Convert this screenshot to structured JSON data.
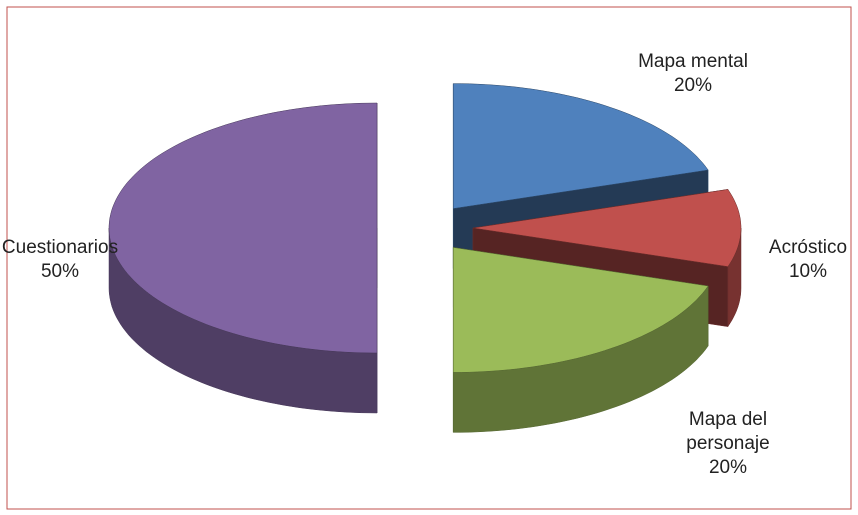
{
  "chart_data": {
    "type": "pie3d",
    "categories": [
      "Mapa mental",
      "Acróstico",
      "Mapa del personaje",
      "Cuestionarios"
    ],
    "values": [
      20,
      10,
      20,
      50
    ],
    "value_labels": [
      "20%",
      "10%",
      "20%",
      "50%"
    ],
    "colors": [
      "#4f81bd",
      "#c0504d",
      "#9bbb59",
      "#8064a2"
    ],
    "exploded": true
  }
}
